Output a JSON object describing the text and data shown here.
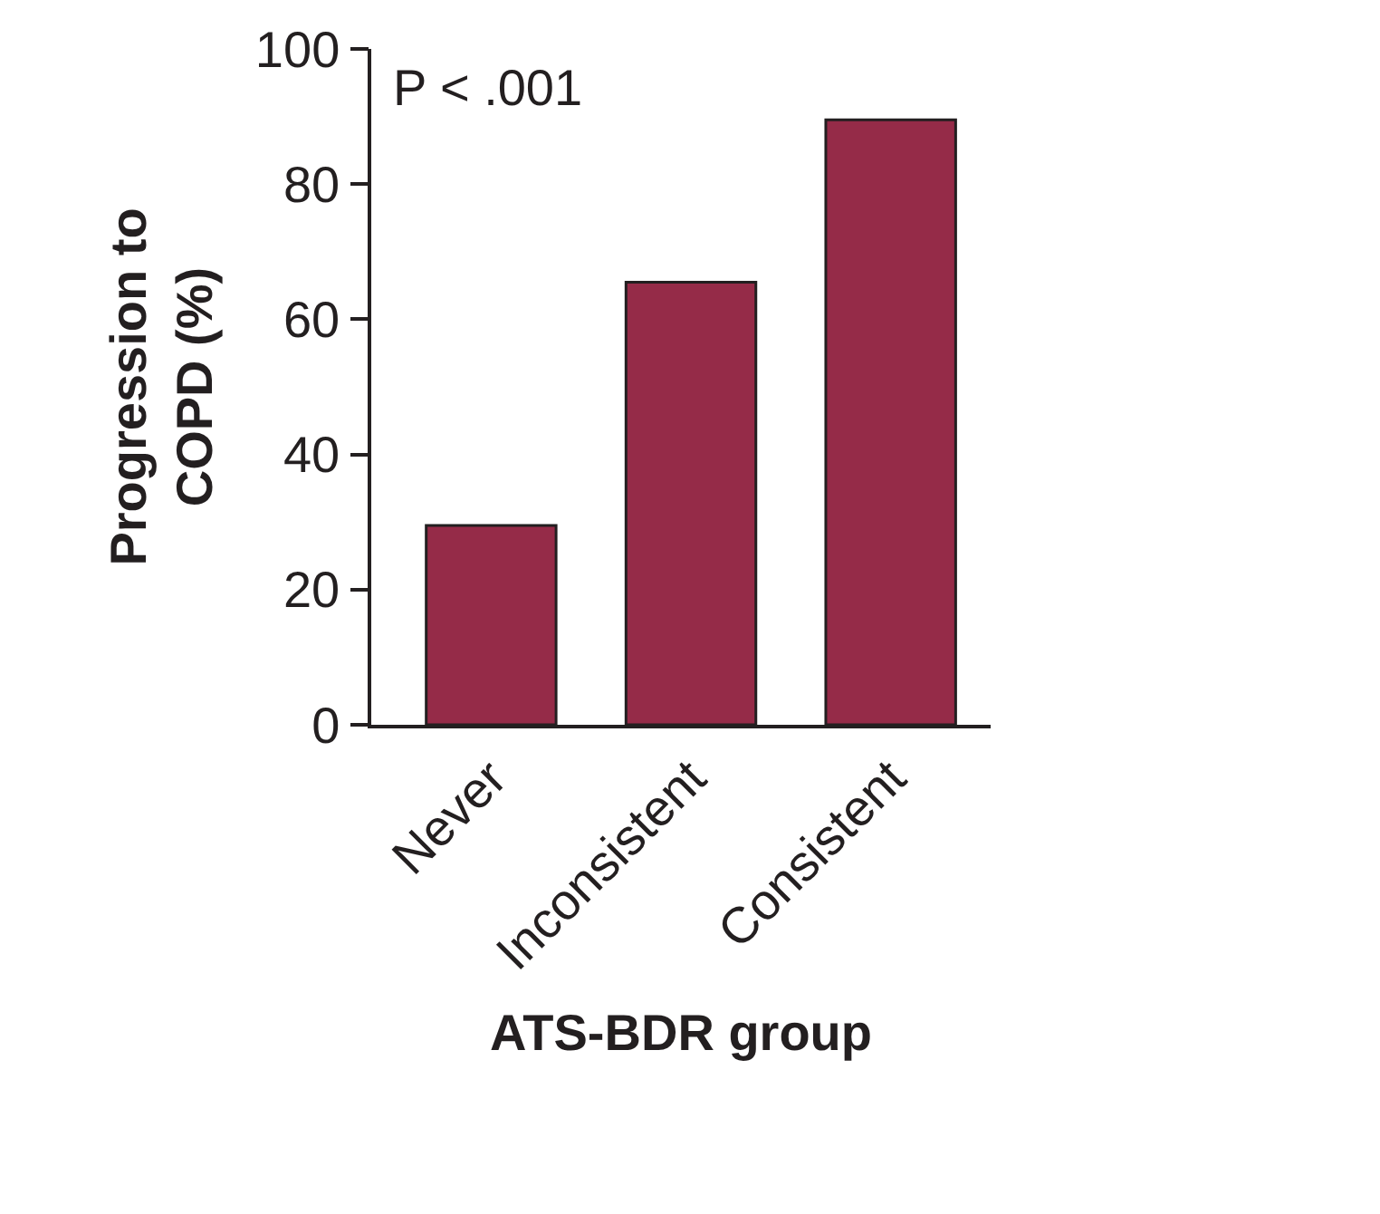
{
  "chart_data": {
    "type": "bar",
    "xlabel": "ATS-BDR group",
    "ylabel": "Progression to\nCOPD (%)",
    "categories": [
      "Never",
      "Inconsistent",
      "Consistent"
    ],
    "values": [
      29.5,
      65.5,
      89.5
    ],
    "color": "#952b48",
    "ylim": [
      0,
      100
    ],
    "yticks": [
      0,
      20,
      40,
      60,
      80,
      100
    ],
    "annotations": [
      "P < .001"
    ]
  }
}
